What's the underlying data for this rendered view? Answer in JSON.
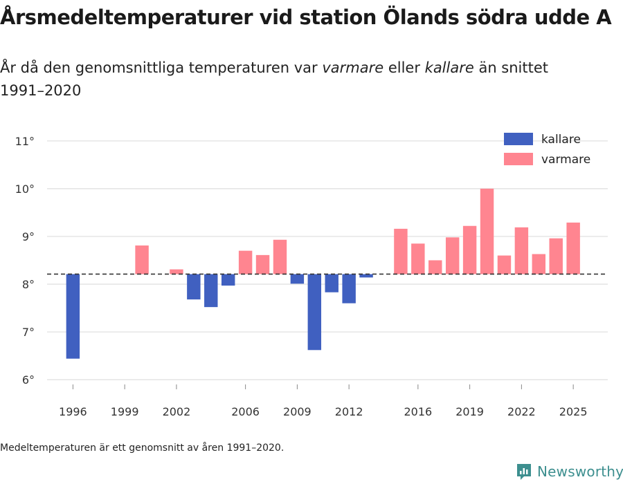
{
  "title": "Årsmedeltemperaturer vid station Ölands södra udde A",
  "subtitle": {
    "part1": "År då den genomsnittliga temperaturen var ",
    "warmer": "varmare",
    "part2": " eller ",
    "colder": "kallare",
    "part3": " än snittet 1991–2020"
  },
  "footnote": "Medeltemperaturen är ett genomsnitt av åren 1991–2020.",
  "brand": "Newsworthy",
  "colors": {
    "colder": "#4060c0",
    "warmer": "#ff8590",
    "grid": "#dddddd",
    "baseline": "#333333",
    "brand": "#3d8f8f"
  },
  "chart_data": {
    "type": "bar",
    "baseline": 8.21,
    "ylim": [
      5.9,
      11.2
    ],
    "yticks": [
      6,
      7,
      8,
      9,
      10,
      11
    ],
    "ytick_labels": [
      "6°",
      "7°",
      "8°",
      "9°",
      "10°",
      "11°"
    ],
    "xlim": [
      1994.5,
      2027.0
    ],
    "xticks": [
      1996,
      1999,
      2002,
      2006,
      2009,
      2012,
      2016,
      2019,
      2022,
      2025
    ],
    "xtick_labels": [
      "1996",
      "1999",
      "2002",
      "2006",
      "2009",
      "2012",
      "2016",
      "2019",
      "2022",
      "2025"
    ],
    "legend": [
      {
        "key": "colder",
        "label": "kallare"
      },
      {
        "key": "warmer",
        "label": "varmare"
      }
    ],
    "legend_position": "top-right",
    "years": [
      1996,
      2000,
      2002,
      2003,
      2004,
      2005,
      2006,
      2007,
      2008,
      2009,
      2010,
      2011,
      2012,
      2013,
      2015,
      2016,
      2017,
      2018,
      2019,
      2020,
      2021,
      2022,
      2023,
      2024,
      2025
    ],
    "values": [
      6.44,
      8.81,
      8.31,
      7.68,
      7.52,
      7.97,
      8.7,
      8.61,
      8.93,
      8.01,
      6.62,
      7.83,
      7.6,
      8.14,
      9.16,
      8.85,
      8.5,
      8.98,
      9.22,
      10.0,
      8.6,
      9.19,
      8.63,
      8.96,
      9.29
    ]
  }
}
